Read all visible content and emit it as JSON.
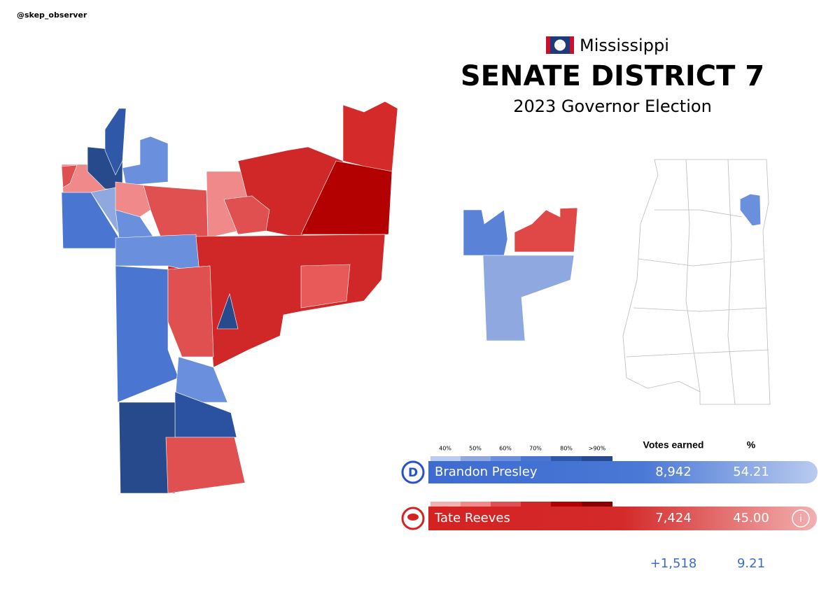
{
  "header": {
    "handle": "@skep_observer",
    "state": "Mississippi",
    "title": "SENATE DISTRICT 7",
    "subtitle": "2023 Governor Election"
  },
  "legend": {
    "scale": [
      "40%",
      "50%",
      "60%",
      "70%",
      "80%",
      ">90%"
    ]
  },
  "table": {
    "columns": [
      "Votes earned",
      "%"
    ],
    "rows": [
      [
        "Brandon Presley",
        "8,942",
        "54.21"
      ],
      [
        "Tate Reeves",
        "7,424",
        "45.00"
      ]
    ],
    "margin": [
      "+1,518",
      "9.21"
    ]
  }
}
